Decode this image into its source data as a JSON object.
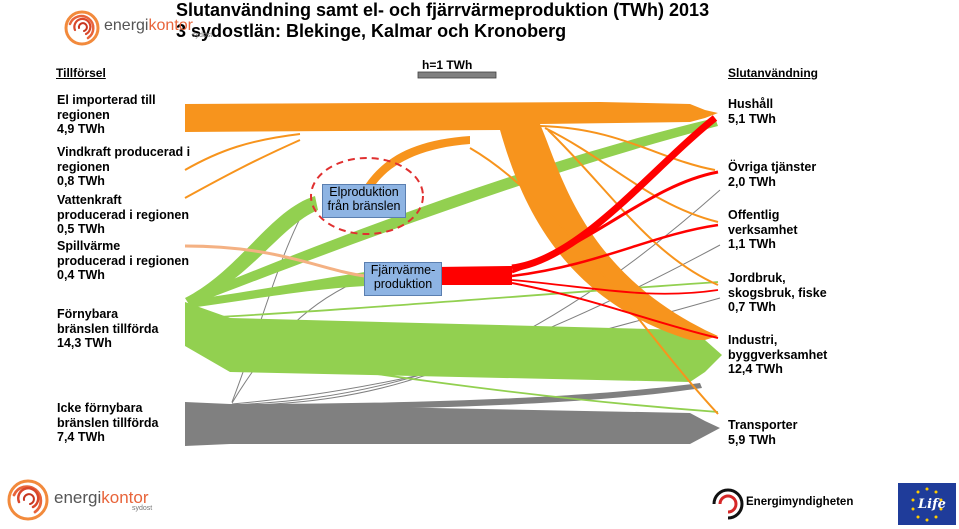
{
  "header": {
    "title_line1": "Slutanvändning samt el- och fjärrvärmeproduktion (TWh) 2013",
    "title_line2": "3 sydostlän: Blekinge, Kalmar och Kronoberg"
  },
  "logo": {
    "brand_left": "energi",
    "brand_right": "kontor",
    "sub": "sydost"
  },
  "scale": {
    "label": "h=1 TWh"
  },
  "sections": {
    "supply_heading": "Tillförsel",
    "use_heading": "Slutanvändning"
  },
  "sources": [
    {
      "lines": [
        "El importerad till",
        "regionen",
        "4,9 TWh"
      ]
    },
    {
      "lines": [
        "Vindkraft producerad i",
        "regionen",
        "0,8 TWh"
      ]
    },
    {
      "lines": [
        "Vattenkraft",
        "producerad i regionen",
        "0,5 TWh"
      ]
    },
    {
      "lines": [
        "Spillvärme",
        "producerad i regionen",
        "0,4 TWh"
      ]
    },
    {
      "lines": [
        "Förnybara",
        "bränslen tillförda",
        "14,3 TWh"
      ]
    },
    {
      "lines": [
        "Icke förnybara",
        "bränslen tillförda",
        "7,4 TWh"
      ]
    }
  ],
  "processes": {
    "elproduktion": [
      "Elproduktion",
      "från bränslen"
    ],
    "fjarrvarme": [
      "Fjärrvärme-",
      "produktion"
    ]
  },
  "destinations": [
    {
      "lines": [
        "Hushåll",
        "5,1 TWh"
      ]
    },
    {
      "lines": [
        "Övriga tjänster",
        "2,0 TWh"
      ]
    },
    {
      "lines": [
        "Offentlig",
        "verksamhet",
        "1,1 TWh"
      ]
    },
    {
      "lines": [
        "Jordbruk,",
        "skogsbruk, fiske",
        "0,7 TWh"
      ]
    },
    {
      "lines": [
        "Industri,",
        "byggverksamhet",
        "12,4 TWh"
      ]
    },
    {
      "lines": [
        "Transporter",
        "5,9 TWh"
      ]
    }
  ],
  "footer": {
    "energimyndigheten": "Energimyndigheten",
    "life": "Life"
  },
  "colors": {
    "electricity": "#f7941d",
    "renewable": "#92d050",
    "district_heat": "#ff0000",
    "non_renewable": "#808080",
    "waste_heat": "#f4b183",
    "process_box": "#8eb4e3",
    "highlight_ring": "#e03030"
  }
}
